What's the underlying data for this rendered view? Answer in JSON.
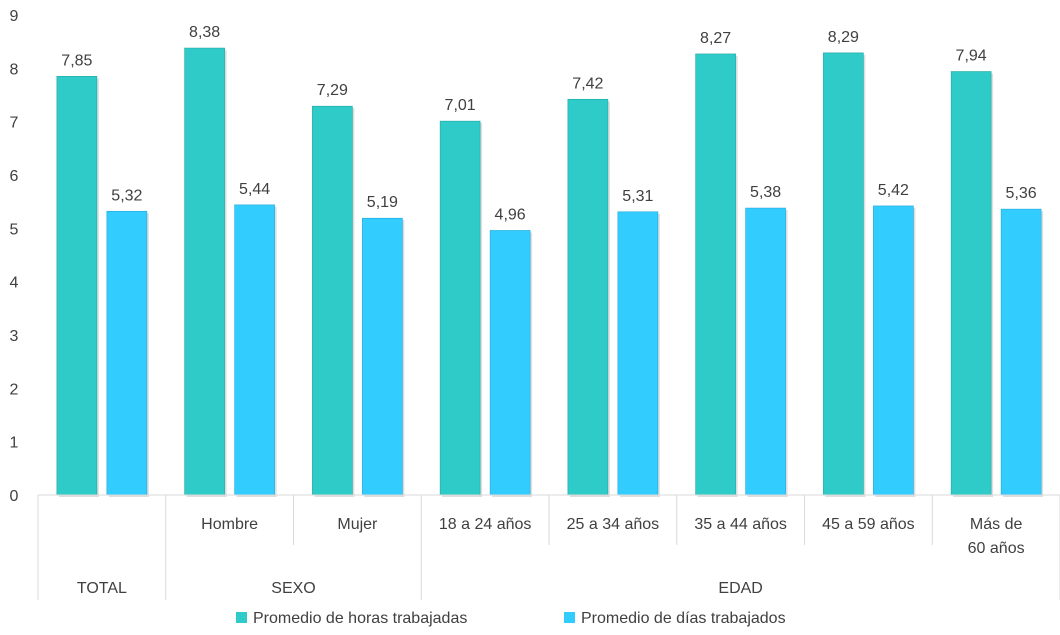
{
  "chart_data": {
    "type": "bar",
    "title": "",
    "xlabel": "",
    "ylabel": "",
    "ylim": [
      0,
      9
    ],
    "yticks": [
      "0",
      "1",
      "2",
      "3",
      "4",
      "5",
      "6",
      "7",
      "8",
      "9"
    ],
    "grid": false,
    "legend_position": "bottom",
    "categories": [
      "",
      "Hombre",
      "Mujer",
      "18 a 24 años",
      "25 a 34 años",
      "35 a 44 años",
      "45 a 59 años",
      "Más de 60 años"
    ],
    "groups": [
      {
        "label": "TOTAL",
        "count": 1
      },
      {
        "label": "SEXO",
        "count": 2
      },
      {
        "label": "EDAD",
        "count": 5
      }
    ],
    "series": [
      {
        "name": "Promedio de horas trabajadas",
        "color": "#2ECBC8",
        "values": [
          7.85,
          8.38,
          7.29,
          7.01,
          7.42,
          8.27,
          8.29,
          7.94
        ],
        "labels": [
          "7,85",
          "8,38",
          "7,29",
          "7,01",
          "7,42",
          "8,27",
          "8,29",
          "7,94"
        ]
      },
      {
        "name": "Promedio de días trabajados",
        "color": "#33CCFF",
        "values": [
          5.32,
          5.44,
          5.19,
          4.96,
          5.31,
          5.38,
          5.42,
          5.36
        ],
        "labels": [
          "5,32",
          "5,44",
          "5,19",
          "4,96",
          "5,31",
          "5,38",
          "5,42",
          "5,36"
        ]
      }
    ]
  }
}
